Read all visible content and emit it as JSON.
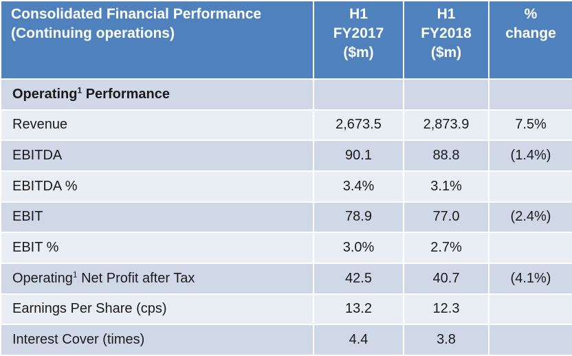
{
  "header": {
    "title_line1": "Consolidated Financial Performance",
    "title_line2": "(Continuing operations)",
    "col1": [
      "H1",
      "FY2017",
      "($m)"
    ],
    "col2": [
      "H1",
      "FY2018",
      "($m)"
    ],
    "col3": [
      "%",
      "change"
    ]
  },
  "section": {
    "label_pre": "Operating",
    "footnote": "1",
    "label_post": " Performance"
  },
  "rows": [
    {
      "label": "Revenue",
      "fy2017": "2,673.5",
      "fy2018": "2,873.9",
      "change": "7.5%"
    },
    {
      "label": "EBITDA",
      "fy2017": "90.1",
      "fy2018": "88.8",
      "change": "(1.4%)"
    },
    {
      "label": "EBITDA %",
      "fy2017": "3.4%",
      "fy2018": "3.1%",
      "change": ""
    },
    {
      "label": "EBIT",
      "fy2017": "78.9",
      "fy2018": "77.0",
      "change": "(2.4%)"
    },
    {
      "label": "EBIT %",
      "fy2017": "3.0%",
      "fy2018": "2.7%",
      "change": ""
    },
    {
      "label_pre": "Operating",
      "footnote": "1",
      "label_post": " Net Profit after Tax",
      "fy2017": "42.5",
      "fy2018": "40.7",
      "change": "(4.1%)"
    },
    {
      "label": "Earnings Per Share (cps)",
      "fy2017": "13.2",
      "fy2018": "12.3",
      "change": ""
    },
    {
      "label": "Interest Cover (times)",
      "fy2017": "4.4",
      "fy2018": "3.8",
      "change": ""
    }
  ],
  "colors": {
    "header_bg": "#4f81bd",
    "row_dark": "#d0d8e8",
    "row_light": "#e9edf4",
    "border": "#ffffff"
  }
}
